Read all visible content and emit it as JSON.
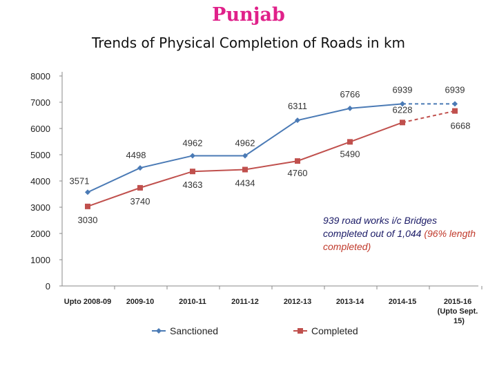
{
  "title": "Punjab",
  "subtitle": "Trends of Physical Completion of Roads in km",
  "note": {
    "part1": "939 road works i/c Bridges completed out of 1,044 ",
    "part2": "(96% length completed)"
  },
  "colors": {
    "title": "#e0218a",
    "sanctioned": "#4a7ab5",
    "completed": "#c0504d",
    "axis": "#888888",
    "gridline": "#d9d9d9"
  },
  "chart_data": {
    "type": "line",
    "categories": [
      "Upto 2008-09",
      "2009-10",
      "2010-11",
      "2011-12",
      "2012-13",
      "2013-14",
      "2014-15",
      "2015-16 (Upto Sept. 15)"
    ],
    "series": [
      {
        "name": "Sanctioned",
        "values": [
          3571,
          4498,
          4962,
          4962,
          6311,
          6766,
          6939,
          6939
        ],
        "marker": "diamond",
        "dashed_last_segment": true
      },
      {
        "name": "Completed",
        "values": [
          3030,
          3740,
          4363,
          4434,
          4760,
          5490,
          6228,
          6668
        ],
        "marker": "square",
        "dashed_last_segment": true
      }
    ],
    "ylim": [
      0,
      8000
    ],
    "yticks": [
      0,
      1000,
      2000,
      3000,
      4000,
      5000,
      6000,
      7000,
      8000
    ],
    "grid": false,
    "legend": "bottom"
  }
}
